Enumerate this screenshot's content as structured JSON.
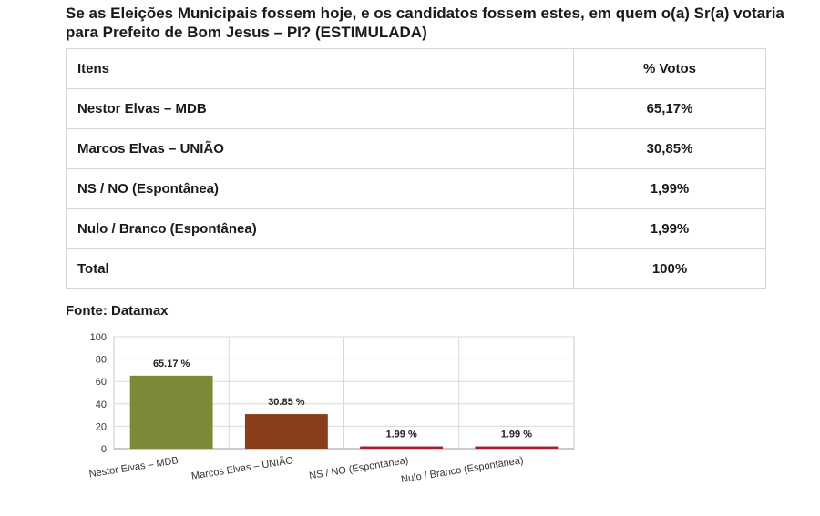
{
  "title": "Se as Eleições Municipais fossem hoje, e os candidatos fossem estes, em quem o(a) Sr(a) votaria para Prefeito de Bom Jesus – PI? (ESTIMULADA)",
  "table": {
    "headers": [
      "Itens",
      "% Votos"
    ],
    "rows": [
      [
        "Nestor Elvas – MDB",
        "65,17%"
      ],
      [
        "Marcos Elvas – UNIÃO",
        "30,85%"
      ],
      [
        "NS / NO (Espontânea)",
        "1,99%"
      ],
      [
        "Nulo / Branco (Espontânea)",
        "1,99%"
      ],
      [
        "Total",
        "100%"
      ]
    ]
  },
  "source": "Fonte: Datamax",
  "chart_data": {
    "type": "bar",
    "categories": [
      "Nestor Elvas – MDB",
      "Marcos Elvas – UNIÃO",
      "NS / NO (Espontânea)",
      "Nulo / Branco (Espontânea)"
    ],
    "values": [
      65.17,
      30.85,
      1.99,
      1.99
    ],
    "data_labels": [
      "65.17 %",
      "30.85 %",
      "1.99 %",
      "1.99 %"
    ],
    "colors": [
      "#7b8a37",
      "#8b3e1b",
      "#a3202a",
      "#a3202a"
    ],
    "ylim": [
      0,
      100
    ],
    "yticks": [
      0,
      20,
      40,
      60,
      80,
      100
    ],
    "grid": true
  }
}
